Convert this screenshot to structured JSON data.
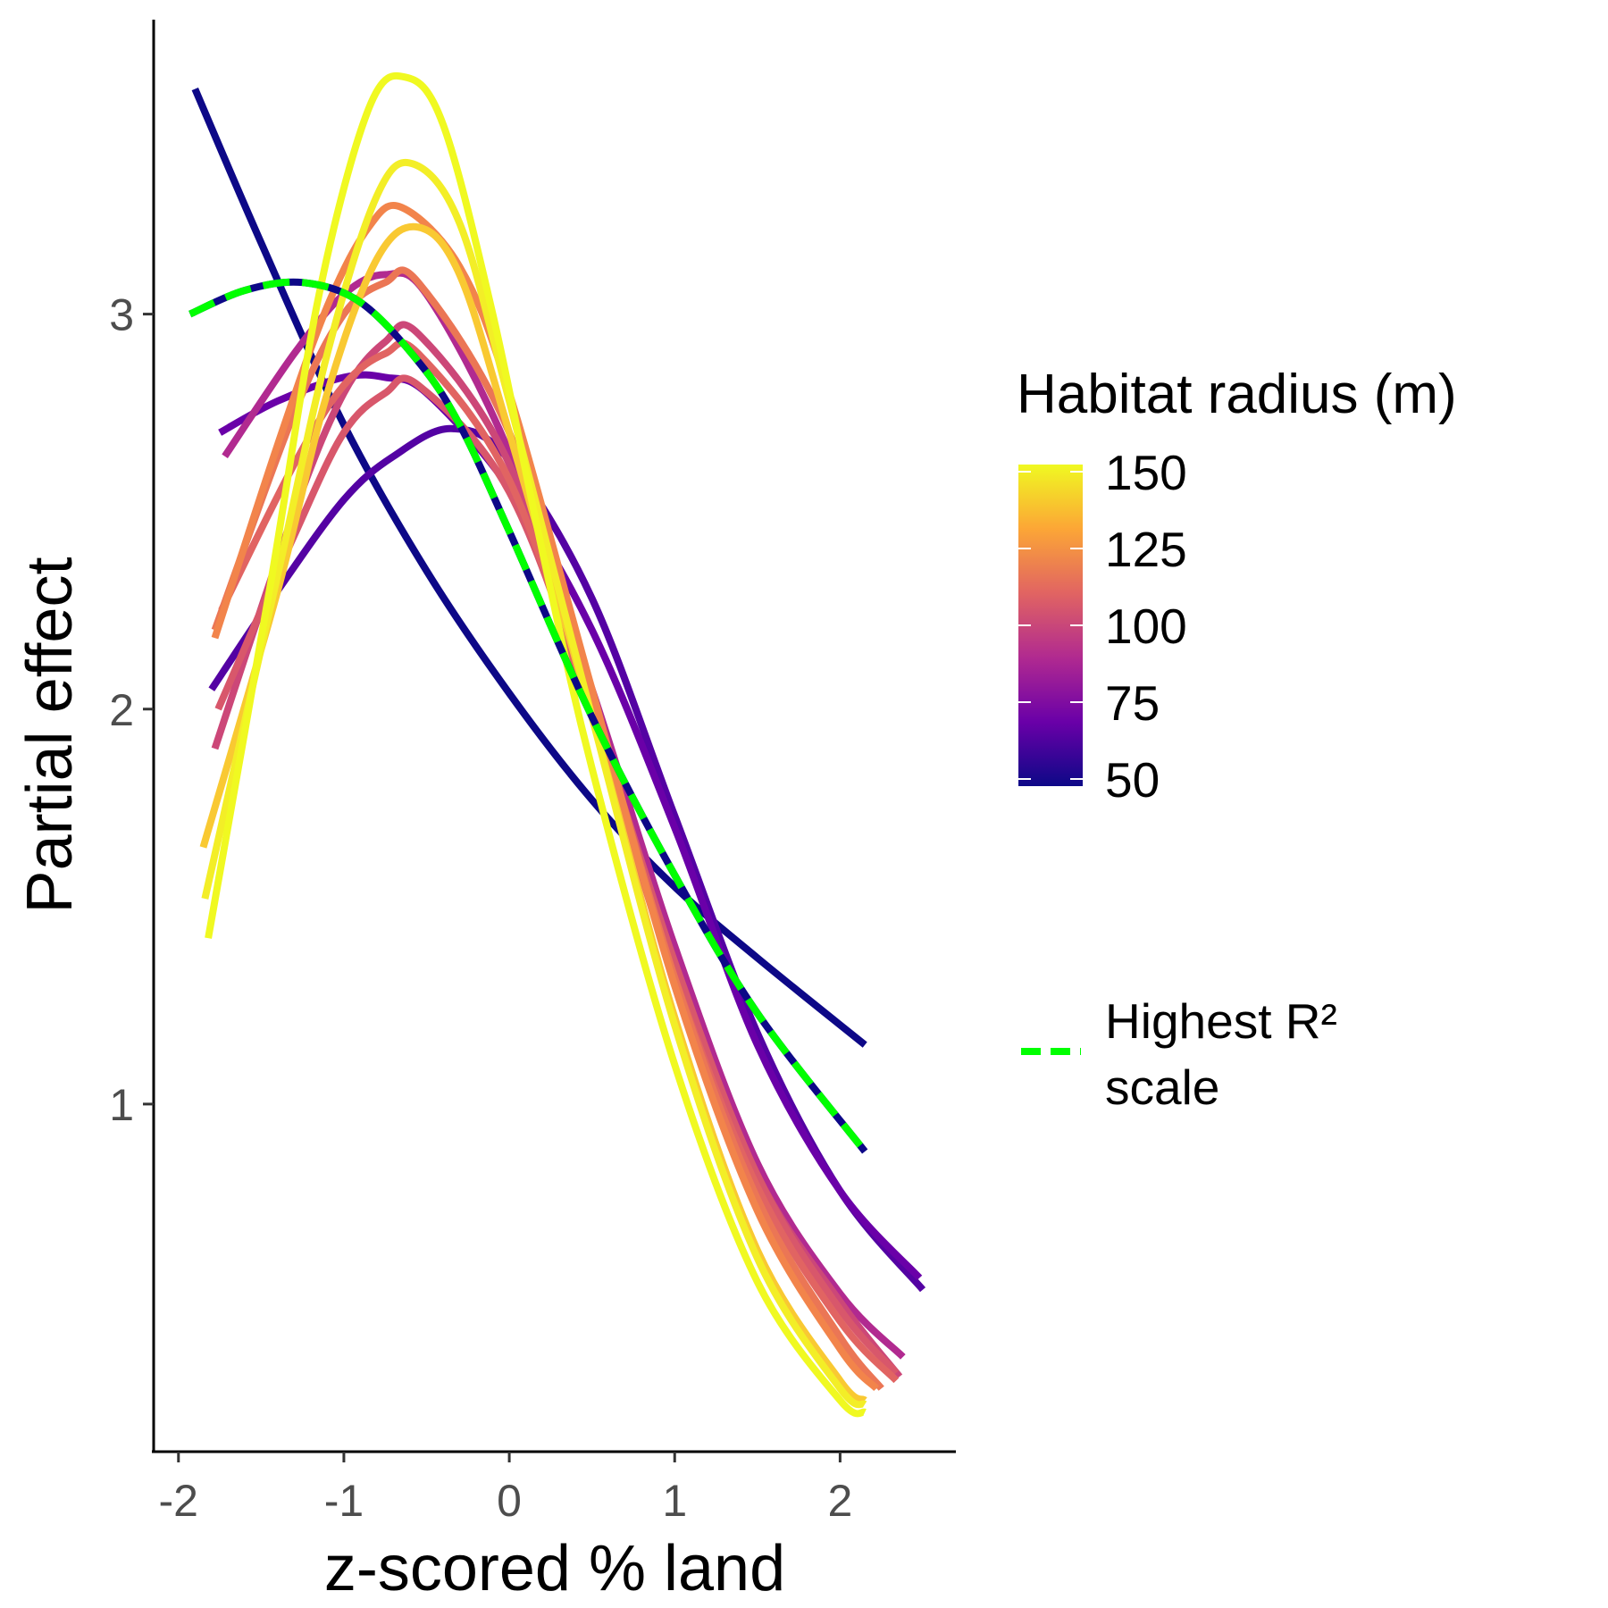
{
  "chart_data": {
    "type": "line",
    "title": "",
    "xlabel": "z-scored % land",
    "ylabel": "Partial effect",
    "xlim": [
      -2.15,
      2.7
    ],
    "ylim": [
      0.12,
      3.75
    ],
    "x_ticks": [
      -2,
      -1,
      0,
      1,
      2
    ],
    "x_tick_labels": [
      "-2",
      "-1",
      "0",
      "1",
      "2"
    ],
    "y_ticks": [
      1,
      2,
      3
    ],
    "y_tick_labels": [
      "1",
      "2",
      "3"
    ],
    "grid": false,
    "color_legend": {
      "title": "Habitat radius (m)",
      "range": [
        50,
        150
      ],
      "ticks": [
        50,
        75,
        100,
        125,
        150
      ],
      "tick_labels": [
        "50",
        "75",
        "100",
        "125",
        "150"
      ],
      "gradient": [
        "#0d0887",
        "#6a00a8",
        "#b12a90",
        "#e16462",
        "#fca636",
        "#f0f921"
      ]
    },
    "line_legend": {
      "label_line1": "Highest R²",
      "label_line2": "scale",
      "color": "#00ff00",
      "dash": "dashed"
    },
    "series": [
      {
        "radius": 50,
        "color": "#0d0887",
        "x": [
          -1.9,
          -1.5,
          -1.0,
          -0.5,
          0.0,
          0.5,
          1.0,
          1.5,
          2.15
        ],
        "y": [
          3.57,
          3.18,
          2.72,
          2.35,
          2.04,
          1.77,
          1.55,
          1.37,
          1.15
        ]
      },
      {
        "radius": 60,
        "color": "#5402a3",
        "x": [
          -1.8,
          -1.4,
          -1.0,
          -0.7,
          -0.35,
          0.0,
          0.5,
          1.0,
          1.5,
          2.0,
          2.5
        ],
        "y": [
          2.05,
          2.3,
          2.53,
          2.64,
          2.71,
          2.63,
          2.28,
          1.73,
          1.18,
          0.78,
          0.53
        ]
      },
      {
        "radius": 65,
        "color": "#6a00a8",
        "x": [
          -1.75,
          -1.4,
          -1.0,
          -0.75,
          -0.5,
          0.0,
          0.5,
          1.0,
          1.5,
          2.0,
          2.48
        ],
        "y": [
          2.7,
          2.78,
          2.84,
          2.84,
          2.8,
          2.56,
          2.2,
          1.7,
          1.15,
          0.78,
          0.56
        ]
      },
      {
        "radius": 85,
        "color": "#b12a90",
        "x": [
          -1.72,
          -1.3,
          -1.0,
          -0.75,
          -0.5,
          0.0,
          0.5,
          1.0,
          1.5,
          2.0,
          2.38
        ],
        "y": [
          2.64,
          2.9,
          3.05,
          3.1,
          3.05,
          2.65,
          2.05,
          1.4,
          0.85,
          0.52,
          0.36
        ]
      },
      {
        "radius": 95,
        "color": "#cc4778",
        "x": [
          -1.78,
          -1.3,
          -1.0,
          -0.75,
          -0.55,
          0.0,
          0.5,
          1.0,
          1.5,
          2.0,
          2.36
        ],
        "y": [
          1.9,
          2.5,
          2.8,
          2.93,
          2.95,
          2.62,
          2.0,
          1.35,
          0.82,
          0.5,
          0.31
        ]
      },
      {
        "radius": 100,
        "color": "#d8576b",
        "x": [
          -1.76,
          -1.3,
          -1.0,
          -0.75,
          -0.55,
          0.0,
          0.5,
          1.0,
          1.5,
          2.0,
          2.34
        ],
        "y": [
          2.0,
          2.44,
          2.7,
          2.8,
          2.82,
          2.55,
          2.0,
          1.36,
          0.82,
          0.48,
          0.32
        ]
      },
      {
        "radius": 110,
        "color": "#e16462",
        "x": [
          -1.74,
          -1.3,
          -1.0,
          -0.75,
          -0.55,
          0.0,
          0.5,
          1.0,
          1.5,
          2.0,
          2.34
        ],
        "y": [
          2.25,
          2.62,
          2.82,
          2.9,
          2.9,
          2.58,
          1.98,
          1.32,
          0.79,
          0.45,
          0.3
        ]
      },
      {
        "radius": 115,
        "color": "#eb7655",
        "x": [
          -1.78,
          -1.3,
          -1.0,
          -0.75,
          -0.55,
          0.0,
          0.5,
          1.0,
          1.5,
          2.0,
          2.25
        ],
        "y": [
          2.2,
          2.75,
          3.0,
          3.08,
          3.08,
          2.7,
          2.03,
          1.32,
          0.76,
          0.41,
          0.28
        ]
      },
      {
        "radius": 120,
        "color": "#f2844b",
        "x": [
          -1.78,
          -1.4,
          -1.1,
          -0.85,
          -0.65,
          -0.3,
          0.0,
          0.5,
          1.0,
          1.5,
          2.0,
          2.22
        ],
        "y": [
          2.18,
          2.67,
          3.02,
          3.22,
          3.27,
          3.12,
          2.8,
          2.05,
          1.3,
          0.73,
          0.38,
          0.28
        ]
      },
      {
        "radius": 135,
        "color": "#f9c932",
        "x": [
          -1.85,
          -1.4,
          -1.1,
          -0.8,
          -0.55,
          -0.3,
          0.0,
          0.5,
          1.0,
          1.5,
          2.0,
          2.15
        ],
        "y": [
          1.65,
          2.3,
          2.8,
          3.14,
          3.22,
          3.1,
          2.7,
          1.98,
          1.22,
          0.63,
          0.3,
          0.25
        ]
      },
      {
        "radius": 145,
        "color": "#f3ee27",
        "x": [
          -1.84,
          -1.4,
          -1.1,
          -0.8,
          -0.58,
          -0.3,
          0.0,
          0.5,
          1.0,
          1.5,
          2.0,
          2.15
        ],
        "y": [
          1.52,
          2.34,
          2.9,
          3.3,
          3.38,
          3.23,
          2.78,
          1.98,
          1.2,
          0.61,
          0.28,
          0.24
        ]
      },
      {
        "radius": 150,
        "color": "#f0f921",
        "x": [
          -1.82,
          -1.45,
          -1.15,
          -0.85,
          -0.63,
          -0.4,
          -0.1,
          0.2,
          0.5,
          1.0,
          1.5,
          2.0,
          2.15
        ],
        "y": [
          1.42,
          2.3,
          3.05,
          3.52,
          3.6,
          3.48,
          3.0,
          2.4,
          1.85,
          1.1,
          0.55,
          0.25,
          0.22
        ]
      },
      {
        "radius": 50,
        "color": "#0d0887",
        "highlight": true,
        "x": [
          -1.93,
          -1.6,
          -1.25,
          -0.9,
          -0.55,
          -0.3,
          0.0,
          0.5,
          1.0,
          1.5,
          2.15
        ],
        "y": [
          3.0,
          3.06,
          3.08,
          3.03,
          2.88,
          2.72,
          2.45,
          1.98,
          1.58,
          1.23,
          0.88
        ]
      }
    ]
  }
}
